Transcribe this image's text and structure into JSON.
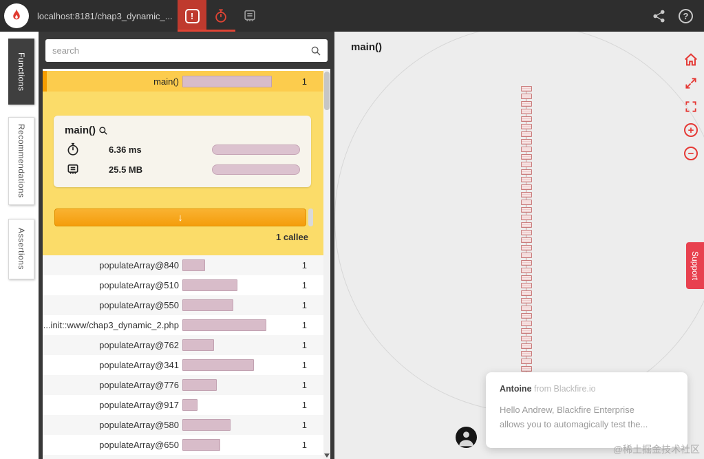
{
  "topbar": {
    "url": "localhost:8181/chap3_dynamic_...",
    "exclamation_glyph": "!",
    "help_glyph": "?"
  },
  "side_tabs": [
    {
      "label": "Functions"
    },
    {
      "label": "Recommendations"
    },
    {
      "label": "Assertions"
    }
  ],
  "search": {
    "placeholder": "search",
    "value": ""
  },
  "selected_function": {
    "name": "main()",
    "count": "1",
    "bar": 130,
    "time": "6.36 ms",
    "time_bar": 128,
    "memory": "25.5 MB",
    "memory_bar": 128,
    "callees_button_icon": "↓",
    "callee_label": "1 callee"
  },
  "function_list": {
    "rows": [
      {
        "label": "populateArray@840",
        "bar": 33,
        "count": "1"
      },
      {
        "label": "populateArray@510",
        "bar": 80,
        "count": "1"
      },
      {
        "label": "populateArray@550",
        "bar": 74,
        "count": "1"
      },
      {
        "label": "...init::www/chap3_dynamic_2.php",
        "bar": 122,
        "count": "1"
      },
      {
        "label": "populateArray@762",
        "bar": 46,
        "count": "1"
      },
      {
        "label": "populateArray@341",
        "bar": 104,
        "count": "1"
      },
      {
        "label": "populateArray@776",
        "bar": 50,
        "count": "1"
      },
      {
        "label": "populateArray@917",
        "bar": 22,
        "count": "1"
      },
      {
        "label": "populateArray@580",
        "bar": 70,
        "count": "1"
      },
      {
        "label": "populateArray@650",
        "bar": 55,
        "count": "1"
      },
      {
        "label": "",
        "bar": 75,
        "count": ""
      }
    ]
  },
  "graph": {
    "title": "main()",
    "node_count": 38
  },
  "support": {
    "label": "Support"
  },
  "chat": {
    "author": "Antoine",
    "author_suffix": " from Blackfire.io",
    "line1": "Hello Andrew, Blackfire Enterprise",
    "line2": "allows you to automagically test the..."
  },
  "watermark": "@稀土掘金技术社区",
  "colors": {
    "accent_red": "#e04434",
    "bar_pink": "#d8bcc9",
    "selected_yellow": "#fccc4d",
    "detail_yellow": "#fbdc69",
    "orange_button": "#f49d0c",
    "support_red": "#e8414f"
  }
}
